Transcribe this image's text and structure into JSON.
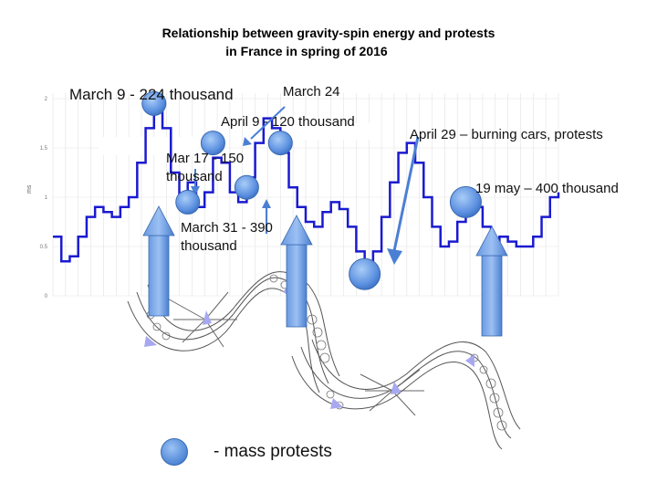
{
  "title_line1": "Relationship between gravity-spin energy and protests",
  "title_line2": "in France in spring of 2016",
  "legend_label": "- mass protests",
  "annotations": {
    "march9": "March 9 - 224 thousand",
    "march24": "March 24",
    "april9": "April 9 - 120 thousand",
    "april29": "April 29 – burning cars, protests",
    "mar17_l1": "Mar 17 - 150",
    "mar17_l2": "thousand",
    "march31_l1": "March 31 - 390",
    "march31_l2": "thousand",
    "may19": "19 may – 400 thousand"
  },
  "colors": {
    "line": "#1a1ad0",
    "protest_marker": "#5b8fe0",
    "arrow": "#4a7fd4"
  },
  "chart_data": {
    "type": "line",
    "title": "Relationship between gravity-spin energy and protests in France in spring of 2016",
    "ylabel": "ms",
    "yticks": [
      "0",
      "0.5",
      "1",
      "1.5",
      "2"
    ],
    "ylim": [
      0,
      2
    ],
    "grid": true,
    "series": [
      {
        "x": [
          0,
          1,
          2,
          3,
          4,
          5,
          6,
          7,
          8,
          9,
          10,
          11,
          12,
          13,
          14,
          15,
          16,
          17,
          18,
          19,
          20,
          21,
          22,
          23,
          24,
          25,
          26,
          27,
          28,
          29,
          30,
          31,
          32,
          33,
          34,
          35,
          36,
          37,
          38,
          39,
          40,
          41,
          42,
          43,
          44,
          45,
          46,
          47,
          48,
          49,
          50,
          51,
          52,
          53,
          54,
          55,
          56,
          57,
          58,
          59,
          60
        ],
        "y": [
          0.6,
          0.35,
          0.4,
          0.6,
          0.8,
          0.9,
          0.85,
          0.8,
          0.9,
          1.0,
          1.35,
          1.7,
          1.95,
          1.7,
          1.25,
          0.95,
          1.15,
          0.9,
          1.05,
          1.4,
          1.35,
          1.05,
          0.95,
          1.2,
          1.55,
          1.8,
          1.7,
          1.45,
          1.1,
          0.9,
          0.75,
          0.7,
          0.85,
          0.95,
          0.88,
          0.7,
          0.45,
          0.3,
          0.45,
          0.8,
          1.15,
          1.45,
          1.55,
          1.35,
          1.0,
          0.7,
          0.5,
          0.55,
          0.75,
          0.95,
          0.9,
          0.7,
          0.55,
          0.6,
          0.55,
          0.5,
          0.5,
          0.6,
          0.8,
          1.0,
          1.05
        ]
      }
    ],
    "protest_markers": [
      {
        "label": "March 9 - 224 thousand",
        "x": 12,
        "y": 1.95
      },
      {
        "label": "Mar 17 - 150 thousand",
        "x": 16,
        "y": 0.95
      },
      {
        "label": "March 24",
        "x": 19,
        "y": 1.55
      },
      {
        "label": "March 31 - 390 thousand",
        "x": 23,
        "y": 1.1
      },
      {
        "label": "April 9 - 120 thousand",
        "x": 27,
        "y": 1.55
      },
      {
        "label": "April 29 – burning cars, protests",
        "x": 37,
        "y": 0.22
      },
      {
        "label": "19 may – 400 thousand",
        "x": 49,
        "y": 0.95
      }
    ]
  }
}
